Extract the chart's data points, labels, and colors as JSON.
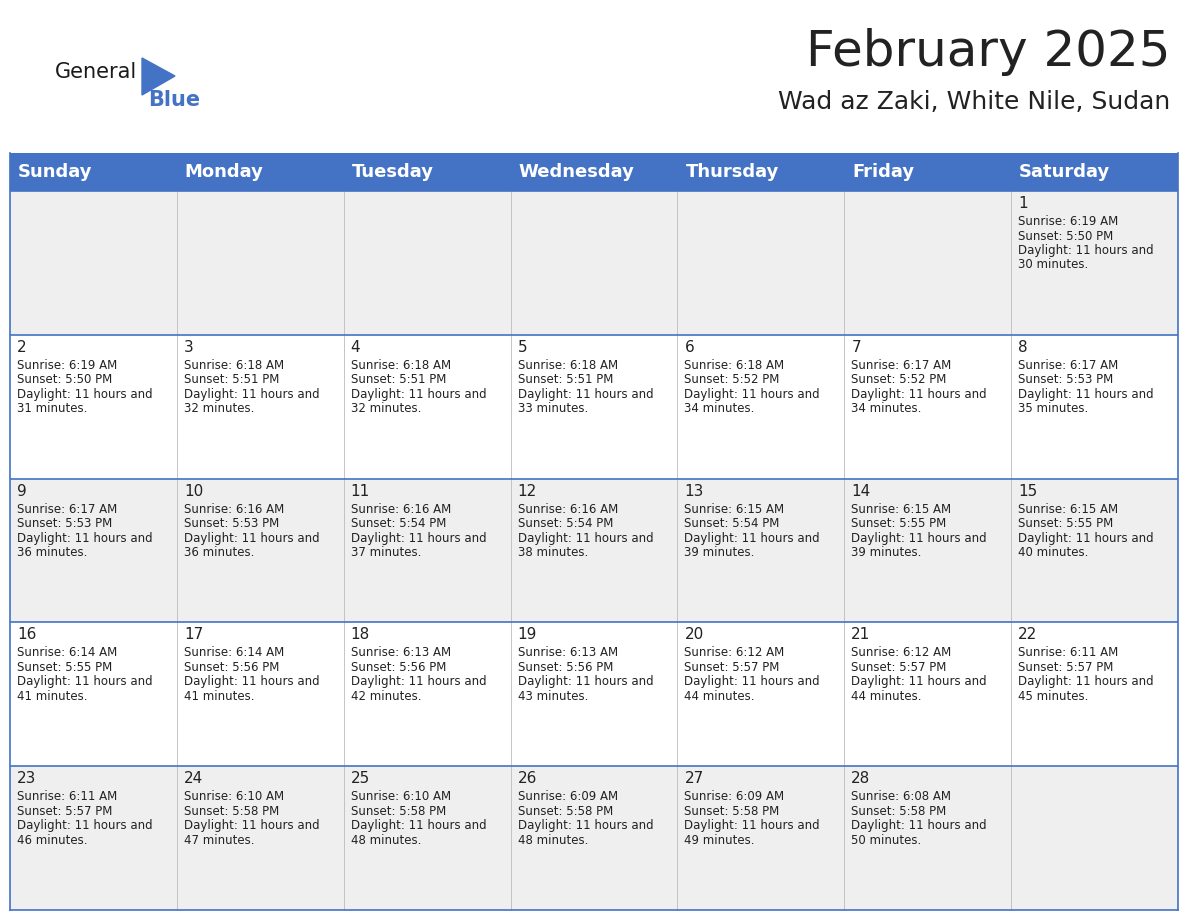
{
  "title": "February 2025",
  "subtitle": "Wad az Zaki, White Nile, Sudan",
  "header_color": "#4472C4",
  "header_text_color": "#FFFFFF",
  "bg_color": "#FFFFFF",
  "cell_bg_white": "#FFFFFF",
  "cell_bg_gray": "#EFEFEF",
  "text_color": "#222222",
  "line_color": "#4472C4",
  "day_headers": [
    "Sunday",
    "Monday",
    "Tuesday",
    "Wednesday",
    "Thursday",
    "Friday",
    "Saturday"
  ],
  "title_fontsize": 36,
  "subtitle_fontsize": 18,
  "header_fontsize": 13,
  "cell_day_fontsize": 11,
  "cell_info_fontsize": 8.5,
  "calendar": [
    [
      null,
      null,
      null,
      null,
      null,
      null,
      1
    ],
    [
      2,
      3,
      4,
      5,
      6,
      7,
      8
    ],
    [
      9,
      10,
      11,
      12,
      13,
      14,
      15
    ],
    [
      16,
      17,
      18,
      19,
      20,
      21,
      22
    ],
    [
      23,
      24,
      25,
      26,
      27,
      28,
      null
    ]
  ],
  "sun_data": {
    "1": {
      "sunrise": "6:19 AM",
      "sunset": "5:50 PM",
      "dl1": "11 hours and",
      "dl2": "30 minutes."
    },
    "2": {
      "sunrise": "6:19 AM",
      "sunset": "5:50 PM",
      "dl1": "11 hours and",
      "dl2": "31 minutes."
    },
    "3": {
      "sunrise": "6:18 AM",
      "sunset": "5:51 PM",
      "dl1": "11 hours and",
      "dl2": "32 minutes."
    },
    "4": {
      "sunrise": "6:18 AM",
      "sunset": "5:51 PM",
      "dl1": "11 hours and",
      "dl2": "32 minutes."
    },
    "5": {
      "sunrise": "6:18 AM",
      "sunset": "5:51 PM",
      "dl1": "11 hours and",
      "dl2": "33 minutes."
    },
    "6": {
      "sunrise": "6:18 AM",
      "sunset": "5:52 PM",
      "dl1": "11 hours and",
      "dl2": "34 minutes."
    },
    "7": {
      "sunrise": "6:17 AM",
      "sunset": "5:52 PM",
      "dl1": "11 hours and",
      "dl2": "34 minutes."
    },
    "8": {
      "sunrise": "6:17 AM",
      "sunset": "5:53 PM",
      "dl1": "11 hours and",
      "dl2": "35 minutes."
    },
    "9": {
      "sunrise": "6:17 AM",
      "sunset": "5:53 PM",
      "dl1": "11 hours and",
      "dl2": "36 minutes."
    },
    "10": {
      "sunrise": "6:16 AM",
      "sunset": "5:53 PM",
      "dl1": "11 hours and",
      "dl2": "36 minutes."
    },
    "11": {
      "sunrise": "6:16 AM",
      "sunset": "5:54 PM",
      "dl1": "11 hours and",
      "dl2": "37 minutes."
    },
    "12": {
      "sunrise": "6:16 AM",
      "sunset": "5:54 PM",
      "dl1": "11 hours and",
      "dl2": "38 minutes."
    },
    "13": {
      "sunrise": "6:15 AM",
      "sunset": "5:54 PM",
      "dl1": "11 hours and",
      "dl2": "39 minutes."
    },
    "14": {
      "sunrise": "6:15 AM",
      "sunset": "5:55 PM",
      "dl1": "11 hours and",
      "dl2": "39 minutes."
    },
    "15": {
      "sunrise": "6:15 AM",
      "sunset": "5:55 PM",
      "dl1": "11 hours and",
      "dl2": "40 minutes."
    },
    "16": {
      "sunrise": "6:14 AM",
      "sunset": "5:55 PM",
      "dl1": "11 hours and",
      "dl2": "41 minutes."
    },
    "17": {
      "sunrise": "6:14 AM",
      "sunset": "5:56 PM",
      "dl1": "11 hours and",
      "dl2": "41 minutes."
    },
    "18": {
      "sunrise": "6:13 AM",
      "sunset": "5:56 PM",
      "dl1": "11 hours and",
      "dl2": "42 minutes."
    },
    "19": {
      "sunrise": "6:13 AM",
      "sunset": "5:56 PM",
      "dl1": "11 hours and",
      "dl2": "43 minutes."
    },
    "20": {
      "sunrise": "6:12 AM",
      "sunset": "5:57 PM",
      "dl1": "11 hours and",
      "dl2": "44 minutes."
    },
    "21": {
      "sunrise": "6:12 AM",
      "sunset": "5:57 PM",
      "dl1": "11 hours and",
      "dl2": "44 minutes."
    },
    "22": {
      "sunrise": "6:11 AM",
      "sunset": "5:57 PM",
      "dl1": "11 hours and",
      "dl2": "45 minutes."
    },
    "23": {
      "sunrise": "6:11 AM",
      "sunset": "5:57 PM",
      "dl1": "11 hours and",
      "dl2": "46 minutes."
    },
    "24": {
      "sunrise": "6:10 AM",
      "sunset": "5:58 PM",
      "dl1": "11 hours and",
      "dl2": "47 minutes."
    },
    "25": {
      "sunrise": "6:10 AM",
      "sunset": "5:58 PM",
      "dl1": "11 hours and",
      "dl2": "48 minutes."
    },
    "26": {
      "sunrise": "6:09 AM",
      "sunset": "5:58 PM",
      "dl1": "11 hours and",
      "dl2": "48 minutes."
    },
    "27": {
      "sunrise": "6:09 AM",
      "sunset": "5:58 PM",
      "dl1": "11 hours and",
      "dl2": "49 minutes."
    },
    "28": {
      "sunrise": "6:08 AM",
      "sunset": "5:58 PM",
      "dl1": "11 hours and",
      "dl2": "50 minutes."
    }
  }
}
